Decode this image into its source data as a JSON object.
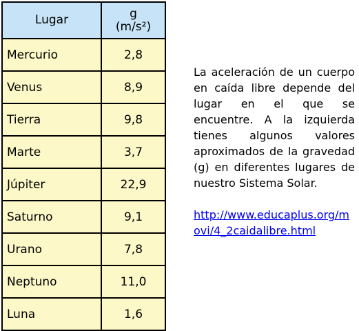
{
  "table": {
    "header": {
      "place": "Lugar",
      "g_symbol": "g",
      "g_unit": "(m/s²)"
    },
    "rows": [
      {
        "place": "Mercurio",
        "g": "2,8"
      },
      {
        "place": "Venus",
        "g": "8,9"
      },
      {
        "place": "Tierra",
        "g": "9,8"
      },
      {
        "place": "Marte",
        "g": "3,7"
      },
      {
        "place": "Júpiter",
        "g": "22,9"
      },
      {
        "place": "Saturno",
        "g": "9,1"
      },
      {
        "place": "Urano",
        "g": "7,8"
      },
      {
        "place": "Neptuno",
        "g": "11,0"
      },
      {
        "place": "Luna",
        "g": "1,6"
      }
    ]
  },
  "side": {
    "text": "La aceleración de un cuerpo en caída libre depende del lugar en el que se encuentre. A la izquierda tienes algunos valores aproximados de la gravedad (g) en diferentes lugares de nuestro Sistema Solar.",
    "link": "http://www.educaplus.org/movi/4_2caidalibre.html"
  },
  "colors": {
    "header_bg": "#c6e3f7",
    "cell_bg": "#fdf8c7",
    "link": "#0000ee"
  }
}
